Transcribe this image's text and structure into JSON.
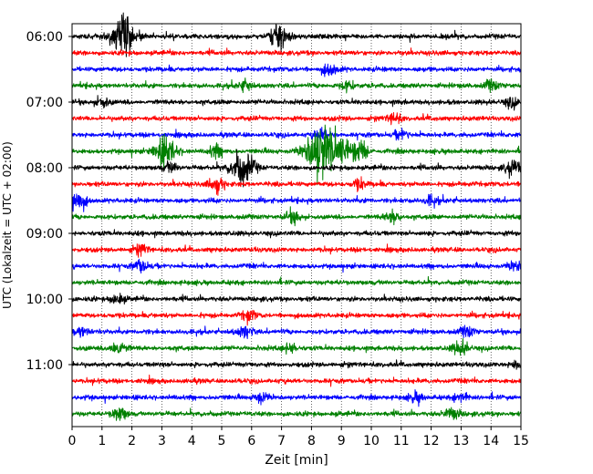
{
  "chart_data": {
    "type": "line",
    "subtype": "helicorder",
    "xlabel": "Zeit  [min]",
    "ylabel": "UTC (Lokalzeit = UTC + 02:00)",
    "xlim": [
      0,
      15
    ],
    "x_ticks": [
      "0",
      "1",
      "2",
      "3",
      "4",
      "5",
      "6",
      "7",
      "8",
      "9",
      "10",
      "11",
      "12",
      "13",
      "14",
      "15"
    ],
    "y_ticks": [
      "06:00",
      "07:00",
      "08:00",
      "09:00",
      "10:00",
      "11:00"
    ],
    "grid": "vertical dotted at each minute",
    "trace_colors": [
      "#000000",
      "#ff0000",
      "#0000ff",
      "#008000"
    ],
    "traces_per_hour": 4,
    "minutes_per_trace": 15,
    "traces": [
      {
        "start": "06:00",
        "events": [
          [
            1.7,
            1.6
          ],
          [
            7.0,
            0.7
          ],
          [
            6.8,
            0.5
          ]
        ]
      },
      {
        "start": "06:15",
        "events": []
      },
      {
        "start": "06:30",
        "events": [
          [
            8.6,
            0.5
          ]
        ]
      },
      {
        "start": "06:45",
        "events": [
          [
            5.8,
            0.4
          ],
          [
            9.2,
            0.4
          ],
          [
            14.0,
            0.4
          ]
        ]
      },
      {
        "start": "07:00",
        "events": [
          [
            1.0,
            0.4
          ],
          [
            14.7,
            0.4
          ]
        ]
      },
      {
        "start": "07:15",
        "events": [
          [
            10.8,
            0.4
          ]
        ]
      },
      {
        "start": "07:30",
        "events": [
          [
            8.3,
            0.5
          ],
          [
            11.0,
            0.4
          ]
        ]
      },
      {
        "start": "07:45",
        "events": [
          [
            3.1,
            1.2
          ],
          [
            8.3,
            2.2
          ],
          [
            9.0,
            1.0
          ],
          [
            9.6,
            0.8
          ],
          [
            4.8,
            0.5
          ]
        ]
      },
      {
        "start": "08:00",
        "events": [
          [
            5.7,
            1.4
          ],
          [
            14.7,
            0.6
          ],
          [
            3.3,
            0.4
          ]
        ]
      },
      {
        "start": "08:15",
        "events": [
          [
            4.8,
            0.6
          ],
          [
            9.6,
            0.4
          ]
        ]
      },
      {
        "start": "08:30",
        "events": [
          [
            0.1,
            1.0
          ],
          [
            12.0,
            0.4
          ]
        ]
      },
      {
        "start": "08:45",
        "events": [
          [
            7.4,
            0.5
          ],
          [
            10.7,
            0.5
          ]
        ]
      },
      {
        "start": "09:00",
        "events": []
      },
      {
        "start": "09:15",
        "events": [
          [
            2.3,
            0.4
          ]
        ]
      },
      {
        "start": "09:30",
        "events": [
          [
            2.3,
            0.5
          ],
          [
            14.8,
            0.4
          ]
        ]
      },
      {
        "start": "09:45",
        "events": []
      },
      {
        "start": "10:00",
        "events": [
          [
            1.5,
            0.4
          ]
        ]
      },
      {
        "start": "10:15",
        "events": [
          [
            5.9,
            0.4
          ]
        ]
      },
      {
        "start": "10:30",
        "events": [
          [
            5.8,
            0.5
          ],
          [
            0.3,
            0.4
          ],
          [
            13.2,
            0.4
          ]
        ]
      },
      {
        "start": "10:45",
        "events": [
          [
            1.5,
            0.6
          ],
          [
            13.0,
            0.6
          ],
          [
            7.3,
            0.4
          ]
        ]
      },
      {
        "start": "11:00",
        "events": [
          [
            14.9,
            0.4
          ]
        ]
      },
      {
        "start": "11:15",
        "events": []
      },
      {
        "start": "11:30",
        "events": [
          [
            6.3,
            0.4
          ],
          [
            11.5,
            0.4
          ],
          [
            13.0,
            0.4
          ]
        ]
      },
      {
        "start": "11:45",
        "events": [
          [
            1.6,
            0.5
          ],
          [
            12.7,
            0.5
          ]
        ]
      }
    ]
  }
}
